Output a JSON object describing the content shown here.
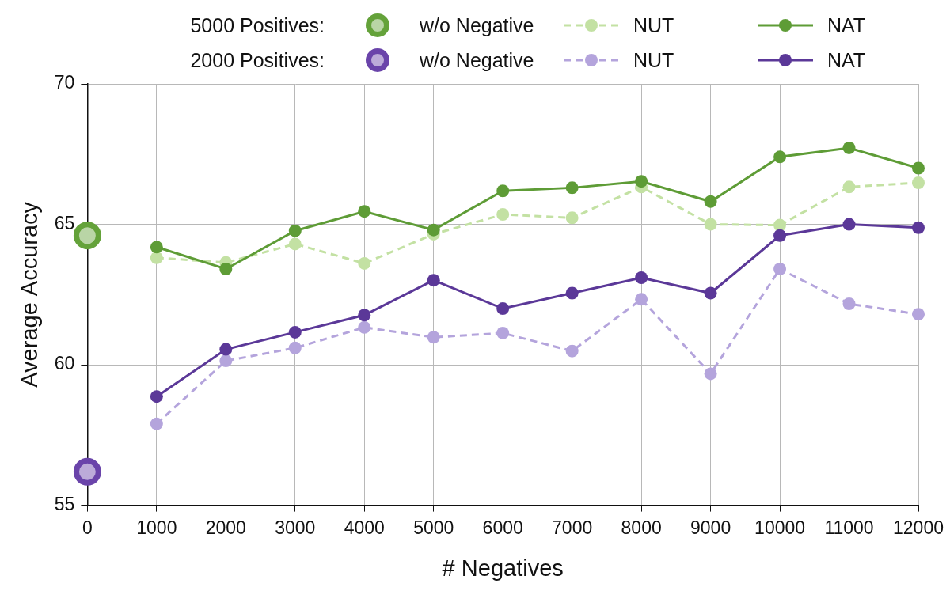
{
  "chart_data": {
    "type": "line",
    "x_label": "# Negatives",
    "y_label": "Average Accuracy",
    "x": [
      0,
      1000,
      2000,
      3000,
      4000,
      5000,
      6000,
      7000,
      8000,
      9000,
      10000,
      11000,
      12000
    ],
    "xlim": [
      0,
      12000
    ],
    "xticks": [
      0,
      1000,
      2000,
      3000,
      4000,
      5000,
      6000,
      7000,
      8000,
      9000,
      10000,
      11000,
      12000
    ],
    "ylim": [
      55,
      70
    ],
    "yticks": [
      55,
      60,
      65,
      70
    ],
    "grid": true,
    "legend": "top",
    "series": [
      {
        "group": "5000 Positives:",
        "name": "w/o Negative",
        "type": "scatter",
        "marker": "circle",
        "color": "#64a23a",
        "values": [
          64.6,
          null,
          null,
          null,
          null,
          null,
          null,
          null,
          null,
          null,
          null,
          null,
          null
        ]
      },
      {
        "group": "5000 Positives:",
        "name": "NUT",
        "type": "line",
        "line_style": "dashed",
        "marker": "circle",
        "color": "#c3e1a3",
        "values": [
          null,
          63.81,
          63.64,
          64.3,
          63.61,
          64.65,
          65.35,
          65.23,
          66.33,
          65.0,
          64.97,
          66.33,
          66.48
        ]
      },
      {
        "group": "5000 Positives:",
        "name": "NAT",
        "type": "line",
        "line_style": "solid",
        "marker": "circle",
        "color": "#5e9c36",
        "values": [
          null,
          64.19,
          63.41,
          64.77,
          65.46,
          64.8,
          66.19,
          66.3,
          66.53,
          65.81,
          67.4,
          67.72,
          67.0
        ]
      },
      {
        "group": "2000 Positives:",
        "name": "w/o Negative",
        "type": "scatter",
        "marker": "circle",
        "color": "#6a44aa",
        "values": [
          56.19,
          null,
          null,
          null,
          null,
          null,
          null,
          null,
          null,
          null,
          null,
          null,
          null
        ]
      },
      {
        "group": "2000 Positives:",
        "name": "NUT",
        "type": "line",
        "line_style": "dashed",
        "marker": "circle",
        "color": "#b4a4dc",
        "values": [
          null,
          57.9,
          60.14,
          60.6,
          61.33,
          60.98,
          61.13,
          60.49,
          62.33,
          59.68,
          63.41,
          62.17,
          61.8
        ]
      },
      {
        "group": "2000 Positives:",
        "name": "NAT",
        "type": "line",
        "line_style": "solid",
        "marker": "circle",
        "color": "#5b3898",
        "values": [
          null,
          58.87,
          60.55,
          61.16,
          61.77,
          63.01,
          62.0,
          62.55,
          63.1,
          62.55,
          64.6,
          65.0,
          64.88
        ]
      }
    ]
  }
}
